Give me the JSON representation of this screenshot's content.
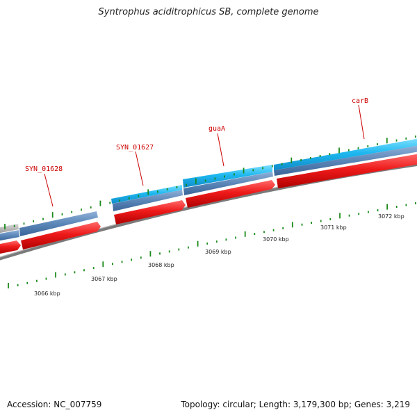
{
  "title": "Syntrophus aciditrophicus SB, complete genome",
  "footer": {
    "accession": "Accession: NC_007759",
    "summary": "Topology: circular; Length: 3,179,300 bp; Genes: 3,219"
  },
  "colors": {
    "forward_cds": "#2ec4f4",
    "reverse_cds": "#e31010",
    "gene": "#5a86b8",
    "backbone": "#8a8a8a",
    "tick": "#1a8a1a",
    "label": "#cc0000"
  },
  "gene_labels": [
    {
      "name": "SYN_01628"
    },
    {
      "name": "SYN_01627"
    },
    {
      "name": "guaA"
    },
    {
      "name": "carB"
    }
  ],
  "scale_labels": [
    "3066 kbp",
    "3067 kbp",
    "3068 kbp",
    "3069 kbp",
    "3070 kbp",
    "3071 kbp",
    "3072 kbp"
  ]
}
